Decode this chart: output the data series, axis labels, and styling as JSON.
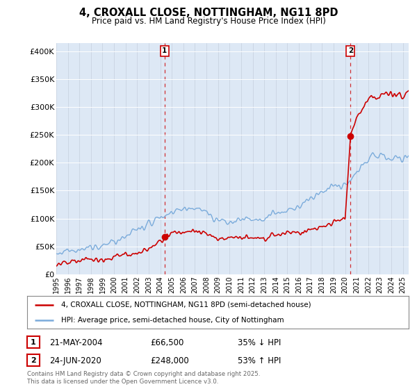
{
  "title": "4, CROXALL CLOSE, NOTTINGHAM, NG11 8PD",
  "subtitle": "Price paid vs. HM Land Registry's House Price Index (HPI)",
  "ylabel_ticks": [
    "£0",
    "£50K",
    "£100K",
    "£150K",
    "£200K",
    "£250K",
    "£300K",
    "£350K",
    "£400K"
  ],
  "ytick_values": [
    0,
    50000,
    100000,
    150000,
    200000,
    250000,
    300000,
    350000,
    400000
  ],
  "ylim": [
    0,
    415000
  ],
  "xlim_start": 1995.0,
  "xlim_end": 2025.5,
  "sale1_x": 2004.38,
  "sale1_price": 66500,
  "sale1_date": "21-MAY-2004",
  "sale1_hpi": "35% ↓ HPI",
  "sale2_x": 2020.47,
  "sale2_price": 248000,
  "sale2_date": "24-JUN-2020",
  "sale2_hpi": "53% ↑ HPI",
  "legend_line1": "4, CROXALL CLOSE, NOTTINGHAM, NG11 8PD (semi-detached house)",
  "legend_line2": "HPI: Average price, semi-detached house, City of Nottingham",
  "footer": "Contains HM Land Registry data © Crown copyright and database right 2025.\nThis data is licensed under the Open Government Licence v3.0.",
  "price_line_color": "#cc0000",
  "hpi_line_color": "#7aabdb",
  "annotation_box_color": "#cc0000",
  "vline_color": "#cc0000",
  "background_color": "#ffffff",
  "plot_bg_color": "#dde8f5"
}
